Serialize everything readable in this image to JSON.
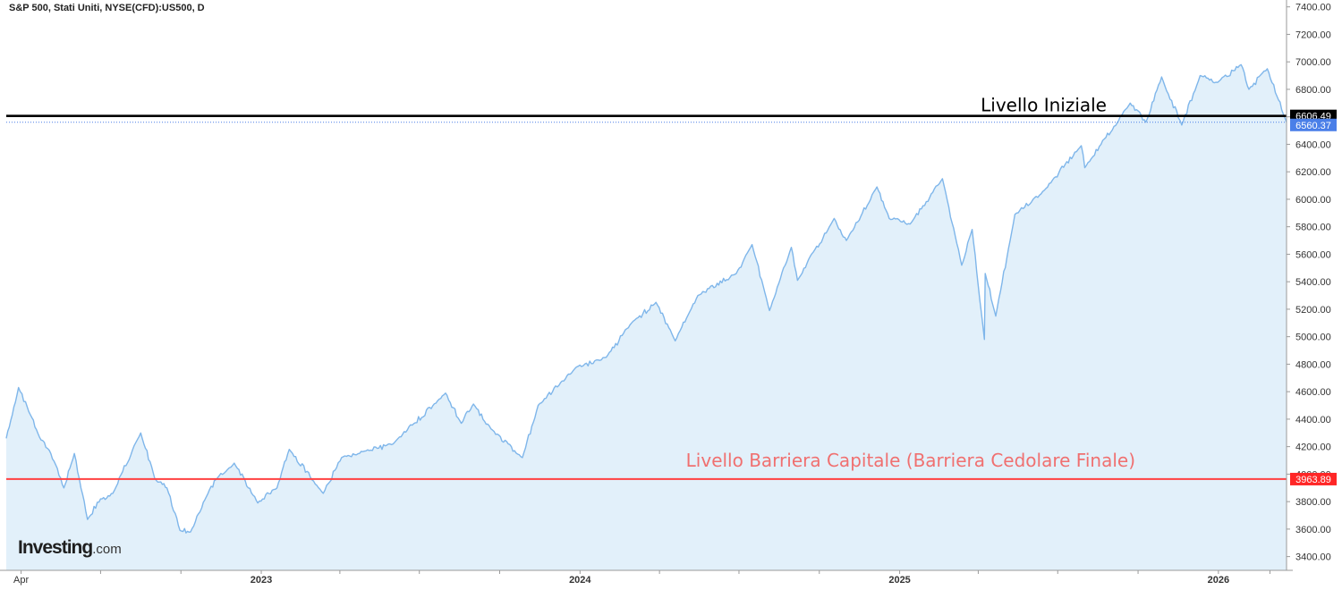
{
  "chart_data": {
    "type": "area",
    "title": "S&P 500, Stati Uniti, NYSE(CFD):US500, D",
    "ylim": [
      3300,
      7450
    ],
    "y_ticks": [
      3400,
      3600,
      3800,
      4000,
      4200,
      4400,
      4600,
      4800,
      5000,
      5200,
      5400,
      5600,
      5800,
      6000,
      6200,
      6400,
      6600,
      6800,
      7000,
      7200,
      7400
    ],
    "y_tick_labels": [
      "3400.00",
      "3600.00",
      "3800.00",
      "4000.00",
      "4200.00",
      "4400.00",
      "4600.00",
      "4800.00",
      "5000.00",
      "5200.00",
      "5400.00",
      "5600.00",
      "5800.00",
      "6000.00",
      "6200.00",
      "6400.00",
      "6600.00",
      "6800.00",
      "7000.00",
      "7200.00",
      "7400.00"
    ],
    "x_range": [
      "2022-03-15",
      "2026-03-20"
    ],
    "x_labels": [
      {
        "date": "2022-04-01",
        "label": "Apr",
        "bold": false
      },
      {
        "date": "2023-01-01",
        "label": "2023",
        "bold": true
      },
      {
        "date": "2024-01-01",
        "label": "2024",
        "bold": true
      },
      {
        "date": "2025-01-01",
        "label": "2025",
        "bold": true
      },
      {
        "date": "2026-01-01",
        "label": "2026",
        "bold": true
      }
    ],
    "x_minor_ticks": [
      "2022-04-01",
      "2022-07-01",
      "2022-10-01",
      "2023-01-01",
      "2023-04-01",
      "2023-07-01",
      "2023-10-01",
      "2024-01-01",
      "2024-04-01",
      "2024-07-01",
      "2024-10-01",
      "2025-01-01",
      "2025-04-01",
      "2025-07-01",
      "2025-10-01",
      "2026-01-01",
      "2026-03-01"
    ],
    "series": [
      {
        "values": [
          [
            "2022-03-15",
            4260
          ],
          [
            "2022-03-29",
            4630
          ],
          [
            "2022-04-08",
            4490
          ],
          [
            "2022-04-22",
            4270
          ],
          [
            "2022-05-05",
            4150
          ],
          [
            "2022-05-20",
            3900
          ],
          [
            "2022-06-01",
            4150
          ],
          [
            "2022-06-16",
            3670
          ],
          [
            "2022-07-01",
            3820
          ],
          [
            "2022-07-15",
            3860
          ],
          [
            "2022-08-16",
            4300
          ],
          [
            "2022-09-01",
            3970
          ],
          [
            "2022-09-15",
            3900
          ],
          [
            "2022-09-30",
            3590
          ],
          [
            "2022-10-12",
            3580
          ],
          [
            "2022-11-01",
            3860
          ],
          [
            "2022-11-10",
            3960
          ],
          [
            "2022-12-01",
            4080
          ],
          [
            "2022-12-28",
            3790
          ],
          [
            "2023-01-19",
            3900
          ],
          [
            "2023-02-02",
            4180
          ],
          [
            "2023-03-13",
            3860
          ],
          [
            "2023-04-03",
            4120
          ],
          [
            "2023-05-01",
            4170
          ],
          [
            "2023-06-01",
            4220
          ],
          [
            "2023-07-31",
            4590
          ],
          [
            "2023-08-18",
            4370
          ],
          [
            "2023-09-01",
            4510
          ],
          [
            "2023-09-21",
            4330
          ],
          [
            "2023-10-27",
            4120
          ],
          [
            "2023-11-14",
            4500
          ],
          [
            "2023-12-28",
            4780
          ],
          [
            "2024-01-31",
            4850
          ],
          [
            "2024-02-29",
            5100
          ],
          [
            "2024-03-28",
            5250
          ],
          [
            "2024-04-19",
            4970
          ],
          [
            "2024-05-15",
            5300
          ],
          [
            "2024-06-28",
            5460
          ],
          [
            "2024-07-16",
            5670
          ],
          [
            "2024-08-05",
            5190
          ],
          [
            "2024-08-30",
            5650
          ],
          [
            "2024-09-06",
            5410
          ],
          [
            "2024-10-18",
            5860
          ],
          [
            "2024-11-01",
            5700
          ],
          [
            "2024-12-06",
            6090
          ],
          [
            "2024-12-20",
            5860
          ],
          [
            "2025-01-13",
            5820
          ],
          [
            "2025-02-19",
            6150
          ],
          [
            "2025-03-13",
            5520
          ],
          [
            "2025-03-25",
            5780
          ],
          [
            "2025-04-08",
            4980
          ],
          [
            "2025-04-09",
            5460
          ],
          [
            "2025-04-21",
            5150
          ],
          [
            "2025-05-13",
            5890
          ],
          [
            "2025-06-12",
            6040
          ],
          [
            "2025-07-28",
            6390
          ],
          [
            "2025-08-01",
            6230
          ],
          [
            "2025-09-22",
            6700
          ],
          [
            "2025-10-10",
            6560
          ],
          [
            "2025-10-28",
            6890
          ],
          [
            "2025-11-20",
            6540
          ],
          [
            "2025-12-11",
            6900
          ],
          [
            "2025-12-31",
            6850
          ],
          [
            "2026-01-27",
            6980
          ],
          [
            "2026-02-05",
            6800
          ],
          [
            "2026-02-26",
            6950
          ],
          [
            "2026-03-20",
            6560
          ]
        ]
      }
    ],
    "reference_lines": [
      {
        "value": 6606.49,
        "label": "Livello Iniziale",
        "color": "#000000",
        "badge": "6606.49",
        "badge_bg": "#000000"
      },
      {
        "value": 3963.89,
        "label": "Livello Barriera Capitale (Barriera Cedolare Finale)",
        "color": "#ff4040",
        "badge": "3963.89",
        "badge_bg": "#ff2626"
      }
    ],
    "last_price": {
      "value": 6560.37,
      "badge": "6560.37",
      "badge_bg": "#4a7fe8"
    },
    "colors": {
      "line": "#7fb6ea",
      "fill": "#e2f0fa",
      "barrier_text": "#f07070"
    },
    "grid": false
  },
  "logo": {
    "brand": "Investing",
    "domain": ".com"
  }
}
